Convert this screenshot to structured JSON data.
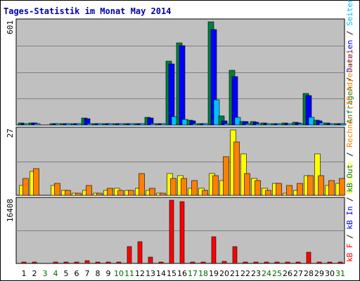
{
  "chart_data": {
    "type": "bar",
    "title": "Tages-Statistik im Monat May 2014",
    "days": [
      "1",
      "2",
      "3",
      "4",
      "5",
      "6",
      "7",
      "8",
      "9",
      "10",
      "11",
      "12",
      "13",
      "14",
      "15",
      "16",
      "17",
      "18",
      "19",
      "20",
      "21",
      "22",
      "23",
      "24",
      "25",
      "26",
      "27",
      "28",
      "29",
      "30",
      "31"
    ],
    "weekend_days": [
      "3",
      "4",
      "10",
      "11",
      "17",
      "18",
      "24",
      "25",
      "31"
    ],
    "colors": {
      "title": "#0000aa",
      "background": "#c0c0c0",
      "grid": "#808080",
      "weekday_label": "#000000",
      "weekend_label": "#006600",
      "hits": "#008040",
      "files": "#0000ff",
      "pages": "#00c0ff",
      "sites": "#ff8000",
      "visits": "#ffff00",
      "kb_f": "#ff0000",
      "kb_in": "#0000ff",
      "kb_out": "#008040"
    },
    "panels": [
      {
        "name": "requests",
        "ymax_label": "601",
        "ymax": 601,
        "right_labels": [
          {
            "text": "Anfragen",
            "color": "#008040"
          },
          {
            "text": " / ",
            "color": "#000000"
          },
          {
            "text": "Dateien",
            "color": "#0000ff"
          },
          {
            "text": " / ",
            "color": "#000000"
          },
          {
            "text": "Seiten",
            "color": "#00c0ff"
          }
        ],
        "series": [
          {
            "name": "Anfragen",
            "color_key": "hits",
            "values": [
              12,
              14,
              0,
              10,
              6,
              4,
              42,
              8,
              6,
              4,
              6,
              4,
              44,
              8,
              372,
              478,
              28,
              6,
              601,
              54,
              318,
              22,
              20,
              12,
              6,
              12,
              16,
              185,
              28,
              12,
              10
            ]
          },
          {
            "name": "Dateien",
            "color_key": "files",
            "values": [
              10,
              12,
              0,
              8,
              5,
              3,
              38,
              7,
              5,
              3,
              5,
              3,
              40,
              7,
              356,
              462,
              26,
              5,
              558,
              26,
              282,
              20,
              18,
              10,
              5,
              10,
              14,
              172,
              26,
              10,
              9
            ]
          },
          {
            "name": "Seiten",
            "color_key": "pages",
            "values": [
              6,
              8,
              0,
              4,
              3,
              2,
              8,
              4,
              3,
              2,
              3,
              2,
              8,
              4,
              48,
              34,
              10,
              3,
              148,
              10,
              44,
              8,
              7,
              5,
              3,
              5,
              6,
              44,
              12,
              5,
              4
            ]
          }
        ]
      },
      {
        "name": "visits",
        "ymax_label": "27",
        "ymax": 27,
        "right_labels": [
          {
            "text": "Besuche",
            "color": "#ffff00"
          },
          {
            "text": " / ",
            "color": "#000000"
          },
          {
            "text": "Rechner (IP-Adressen)",
            "color": "#ff8000"
          }
        ],
        "series": [
          {
            "name": "Besuche",
            "color_key": "visits",
            "values": [
              4,
              10,
              0,
              4,
              2,
              1,
              2,
              1,
              2,
              3,
              2,
              3,
              2,
              1,
              9,
              8,
              3,
              3,
              9,
              6,
              27,
              17,
              7,
              3,
              5,
              1,
              2,
              8,
              17,
              4,
              5
            ]
          },
          {
            "name": "Rechner (IP-Adressen)",
            "color_key": "sites",
            "values": [
              7,
              11,
              0,
              5,
              2,
              1,
              4,
              1,
              3,
              2,
              2,
              9,
              3,
              1,
              7,
              7,
              6,
              2,
              8,
              16,
              22,
              9,
              6,
              2,
              5,
              4,
              5,
              8,
              8,
              6,
              7
            ]
          }
        ]
      },
      {
        "name": "kbytes",
        "ymax_label": "16408",
        "ymax": 16408,
        "right_labels": [
          {
            "text": "kB F",
            "color": "#ff0000"
          },
          {
            "text": " / ",
            "color": "#000000"
          },
          {
            "text": "kB In",
            "color": "#0000ff"
          },
          {
            "text": " / ",
            "color": "#000000"
          },
          {
            "text": "kB Out",
            "color": "#008040"
          }
        ],
        "series": [
          {
            "name": "kB F",
            "color_key": "kb_f",
            "values": [
              180,
              180,
              0,
              180,
              180,
              180,
              760,
              180,
              180,
              180,
              4400,
              5600,
              1700,
              220,
              16408,
              16000,
              340,
              180,
              7000,
              570,
              4400,
              200,
              180,
              200,
              180,
              200,
              200,
              3000,
              300,
              200,
              180
            ]
          }
        ]
      }
    ]
  }
}
